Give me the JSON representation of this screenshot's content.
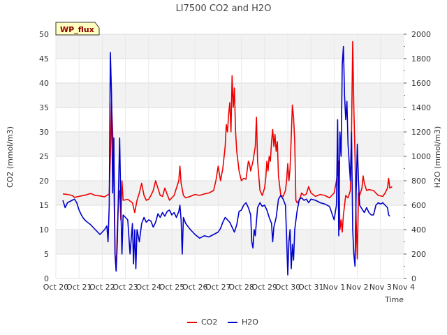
{
  "chart_data": {
    "type": "line",
    "title": "LI7500 CO2 and H2O",
    "xlabel": "Time",
    "ylabel_left": "CO2 (mmol/m3)",
    "ylabel_right": "H2O (mmol/m3)",
    "badge": "WP_flux",
    "x_ticks": [
      "Oct 20",
      "Oct 21",
      "Oct 22",
      "Oct 23",
      "Oct 24",
      "Oct 25",
      "Oct 26",
      "Oct 27",
      "Oct 28",
      "Oct 29",
      "Oct 30",
      "Oct 31",
      "Nov 1",
      "Nov 2",
      "Nov 3",
      "Nov 4"
    ],
    "xlim": [
      0,
      15
    ],
    "ylim_left": [
      0,
      50
    ],
    "ylim_right": [
      0,
      2000
    ],
    "yticks_left": [
      0,
      5,
      10,
      15,
      20,
      25,
      30,
      35,
      40,
      45,
      50
    ],
    "yticks_right": [
      0,
      200,
      400,
      600,
      800,
      1000,
      1200,
      1400,
      1600,
      1800,
      2000
    ],
    "grid": true,
    "legend_position": "bottom",
    "series": [
      {
        "name": "CO2",
        "color": "#ee0000",
        "axis": "left",
        "points": [
          [
            0.3,
            17.3
          ],
          [
            0.5,
            17.2
          ],
          [
            0.7,
            17.0
          ],
          [
            0.8,
            16.6
          ],
          [
            1.0,
            16.8
          ],
          [
            1.3,
            17.1
          ],
          [
            1.5,
            17.4
          ],
          [
            1.7,
            17.0
          ],
          [
            1.9,
            16.9
          ],
          [
            2.1,
            16.7
          ],
          [
            2.2,
            17.0
          ],
          [
            2.3,
            17.3
          ],
          [
            2.35,
            25.0
          ],
          [
            2.4,
            36.0
          ],
          [
            2.45,
            30.0
          ],
          [
            2.5,
            20.0
          ],
          [
            2.55,
            5.0
          ],
          [
            2.6,
            1.5
          ],
          [
            2.65,
            10.0
          ],
          [
            2.7,
            16.0
          ],
          [
            2.75,
            18.0
          ],
          [
            2.8,
            12.0
          ],
          [
            2.85,
            20.0
          ],
          [
            2.9,
            16.0
          ],
          [
            3.1,
            16.2
          ],
          [
            3.3,
            15.5
          ],
          [
            3.4,
            13.5
          ],
          [
            3.5,
            16.0
          ],
          [
            3.6,
            17.5
          ],
          [
            3.7,
            19.5
          ],
          [
            3.8,
            17.0
          ],
          [
            3.9,
            16.0
          ],
          [
            4.0,
            16.2
          ],
          [
            4.1,
            17.0
          ],
          [
            4.2,
            18.0
          ],
          [
            4.3,
            20.0
          ],
          [
            4.4,
            18.5
          ],
          [
            4.5,
            17.0
          ],
          [
            4.6,
            16.8
          ],
          [
            4.7,
            18.5
          ],
          [
            4.8,
            17.2
          ],
          [
            4.9,
            16.0
          ],
          [
            5.0,
            16.5
          ],
          [
            5.1,
            17.0
          ],
          [
            5.2,
            18.5
          ],
          [
            5.3,
            20.0
          ],
          [
            5.35,
            23.0
          ],
          [
            5.4,
            19.5
          ],
          [
            5.5,
            17.0
          ],
          [
            5.6,
            16.5
          ],
          [
            5.8,
            16.8
          ],
          [
            6.0,
            17.2
          ],
          [
            6.2,
            17.0
          ],
          [
            6.4,
            17.3
          ],
          [
            6.6,
            17.5
          ],
          [
            6.8,
            18.0
          ],
          [
            6.9,
            20.0
          ],
          [
            7.0,
            23.0
          ],
          [
            7.1,
            20.0
          ],
          [
            7.2,
            22.5
          ],
          [
            7.3,
            27.0
          ],
          [
            7.35,
            31.5
          ],
          [
            7.4,
            30.0
          ],
          [
            7.45,
            33.5
          ],
          [
            7.5,
            36.0
          ],
          [
            7.55,
            30.0
          ],
          [
            7.6,
            41.5
          ],
          [
            7.65,
            35.0
          ],
          [
            7.7,
            39.0
          ],
          [
            7.75,
            30.0
          ],
          [
            7.8,
            26.0
          ],
          [
            7.9,
            22.0
          ],
          [
            8.0,
            20.0
          ],
          [
            8.1,
            20.5
          ],
          [
            8.2,
            20.3
          ],
          [
            8.3,
            24.0
          ],
          [
            8.35,
            23.5
          ],
          [
            8.4,
            22.0
          ],
          [
            8.5,
            24.0
          ],
          [
            8.6,
            27.0
          ],
          [
            8.65,
            33.0
          ],
          [
            8.7,
            24.0
          ],
          [
            8.8,
            18.0
          ],
          [
            8.9,
            17.0
          ],
          [
            9.0,
            18.5
          ],
          [
            9.05,
            20.5
          ],
          [
            9.1,
            24.0
          ],
          [
            9.15,
            22.0
          ],
          [
            9.2,
            25.0
          ],
          [
            9.25,
            24.0
          ],
          [
            9.3,
            28.0
          ],
          [
            9.35,
            30.5
          ],
          [
            9.4,
            27.0
          ],
          [
            9.45,
            29.5
          ],
          [
            9.5,
            26.0
          ],
          [
            9.55,
            28.0
          ],
          [
            9.6,
            21.0
          ],
          [
            9.7,
            17.0
          ],
          [
            9.8,
            16.8
          ],
          [
            9.9,
            18.0
          ],
          [
            9.95,
            20.0
          ],
          [
            10.0,
            23.5
          ],
          [
            10.05,
            20.0
          ],
          [
            10.1,
            22.5
          ],
          [
            10.15,
            29.0
          ],
          [
            10.2,
            35.5
          ],
          [
            10.25,
            33.0
          ],
          [
            10.3,
            28.0
          ],
          [
            10.35,
            16.0
          ],
          [
            10.4,
            15.5
          ],
          [
            10.5,
            16.0
          ],
          [
            10.6,
            17.5
          ],
          [
            10.7,
            17.0
          ],
          [
            10.8,
            17.3
          ],
          [
            10.9,
            18.8
          ],
          [
            11.0,
            17.5
          ],
          [
            11.2,
            16.8
          ],
          [
            11.4,
            17.2
          ],
          [
            11.6,
            17.0
          ],
          [
            11.8,
            16.5
          ],
          [
            12.0,
            17.5
          ],
          [
            12.1,
            20.0
          ],
          [
            12.2,
            24.0
          ],
          [
            12.25,
            10.0
          ],
          [
            12.3,
            12.0
          ],
          [
            12.35,
            9.5
          ],
          [
            12.4,
            13.0
          ],
          [
            12.5,
            17.0
          ],
          [
            12.6,
            16.5
          ],
          [
            12.7,
            18.0
          ],
          [
            12.75,
            30.0
          ],
          [
            12.8,
            48.5
          ],
          [
            12.85,
            35.0
          ],
          [
            12.9,
            25.0
          ],
          [
            12.95,
            12.0
          ],
          [
            13.0,
            4.0
          ],
          [
            13.05,
            17.5
          ],
          [
            13.1,
            17.0
          ],
          [
            13.2,
            18.5
          ],
          [
            13.25,
            21.0
          ],
          [
            13.3,
            19.5
          ],
          [
            13.4,
            18.0
          ],
          [
            13.5,
            18.2
          ],
          [
            13.7,
            18.0
          ],
          [
            13.9,
            17.0
          ],
          [
            14.1,
            16.8
          ],
          [
            14.2,
            17.5
          ],
          [
            14.3,
            18.5
          ],
          [
            14.35,
            20.5
          ],
          [
            14.4,
            18.5
          ],
          [
            14.5,
            18.8
          ]
        ]
      },
      {
        "name": "H2O",
        "color": "#0000cc",
        "axis": "right",
        "points": [
          [
            0.3,
            640
          ],
          [
            0.4,
            580
          ],
          [
            0.5,
            620
          ],
          [
            0.7,
            640
          ],
          [
            0.8,
            650
          ],
          [
            0.9,
            620
          ],
          [
            1.0,
            560
          ],
          [
            1.1,
            520
          ],
          [
            1.2,
            490
          ],
          [
            1.3,
            470
          ],
          [
            1.5,
            440
          ],
          [
            1.7,
            400
          ],
          [
            1.9,
            360
          ],
          [
            2.1,
            400
          ],
          [
            2.2,
            430
          ],
          [
            2.25,
            300
          ],
          [
            2.3,
            600
          ],
          [
            2.35,
            1850
          ],
          [
            2.4,
            1500
          ],
          [
            2.45,
            700
          ],
          [
            2.5,
            1150
          ],
          [
            2.55,
            200
          ],
          [
            2.6,
            60
          ],
          [
            2.65,
            300
          ],
          [
            2.7,
            700
          ],
          [
            2.75,
            1150
          ],
          [
            2.8,
            600
          ],
          [
            2.85,
            200
          ],
          [
            2.9,
            520
          ],
          [
            3.0,
            500
          ],
          [
            3.1,
            480
          ],
          [
            3.2,
            200
          ],
          [
            3.3,
            450
          ],
          [
            3.35,
            120
          ],
          [
            3.4,
            400
          ],
          [
            3.45,
            80
          ],
          [
            3.5,
            400
          ],
          [
            3.6,
            300
          ],
          [
            3.7,
            450
          ],
          [
            3.8,
            500
          ],
          [
            3.9,
            460
          ],
          [
            4.0,
            480
          ],
          [
            4.1,
            470
          ],
          [
            4.2,
            420
          ],
          [
            4.3,
            460
          ],
          [
            4.4,
            530
          ],
          [
            4.5,
            500
          ],
          [
            4.6,
            540
          ],
          [
            4.7,
            510
          ],
          [
            4.8,
            550
          ],
          [
            4.9,
            560
          ],
          [
            5.0,
            520
          ],
          [
            5.1,
            540
          ],
          [
            5.2,
            500
          ],
          [
            5.3,
            550
          ],
          [
            5.35,
            600
          ],
          [
            5.4,
            480
          ],
          [
            5.45,
            200
          ],
          [
            5.5,
            500
          ],
          [
            5.6,
            450
          ],
          [
            5.8,
            400
          ],
          [
            6.0,
            360
          ],
          [
            6.2,
            330
          ],
          [
            6.4,
            350
          ],
          [
            6.6,
            340
          ],
          [
            6.8,
            360
          ],
          [
            7.0,
            380
          ],
          [
            7.1,
            410
          ],
          [
            7.2,
            460
          ],
          [
            7.3,
            500
          ],
          [
            7.4,
            480
          ],
          [
            7.5,
            460
          ],
          [
            7.6,
            420
          ],
          [
            7.7,
            380
          ],
          [
            7.8,
            440
          ],
          [
            7.9,
            550
          ],
          [
            8.0,
            560
          ],
          [
            8.1,
            600
          ],
          [
            8.2,
            620
          ],
          [
            8.3,
            580
          ],
          [
            8.4,
            520
          ],
          [
            8.45,
            300
          ],
          [
            8.5,
            250
          ],
          [
            8.55,
            400
          ],
          [
            8.6,
            350
          ],
          [
            8.7,
            580
          ],
          [
            8.8,
            620
          ],
          [
            8.9,
            590
          ],
          [
            9.0,
            600
          ],
          [
            9.1,
            560
          ],
          [
            9.2,
            500
          ],
          [
            9.3,
            450
          ],
          [
            9.35,
            300
          ],
          [
            9.4,
            420
          ],
          [
            9.5,
            500
          ],
          [
            9.6,
            650
          ],
          [
            9.7,
            680
          ],
          [
            9.8,
            650
          ],
          [
            9.9,
            600
          ],
          [
            9.95,
            350
          ],
          [
            10.0,
            30
          ],
          [
            10.05,
            300
          ],
          [
            10.1,
            400
          ],
          [
            10.15,
            80
          ],
          [
            10.2,
            280
          ],
          [
            10.25,
            150
          ],
          [
            10.3,
            400
          ],
          [
            10.4,
            550
          ],
          [
            10.5,
            650
          ],
          [
            10.6,
            660
          ],
          [
            10.7,
            640
          ],
          [
            10.8,
            650
          ],
          [
            10.9,
            620
          ],
          [
            11.0,
            650
          ],
          [
            11.2,
            640
          ],
          [
            11.4,
            620
          ],
          [
            11.6,
            610
          ],
          [
            11.8,
            590
          ],
          [
            12.0,
            480
          ],
          [
            12.1,
            600
          ],
          [
            12.15,
            1300
          ],
          [
            12.2,
            350
          ],
          [
            12.25,
            1200
          ],
          [
            12.3,
            1000
          ],
          [
            12.35,
            1750
          ],
          [
            12.4,
            1900
          ],
          [
            12.45,
            1500
          ],
          [
            12.5,
            1300
          ],
          [
            12.55,
            1450
          ],
          [
            12.6,
            1100
          ],
          [
            12.7,
            800
          ],
          [
            12.75,
            1200
          ],
          [
            12.8,
            400
          ],
          [
            12.85,
            200
          ],
          [
            12.9,
            100
          ],
          [
            12.95,
            700
          ],
          [
            13.0,
            1100
          ],
          [
            13.05,
            800
          ],
          [
            13.1,
            600
          ],
          [
            13.2,
            570
          ],
          [
            13.3,
            540
          ],
          [
            13.4,
            580
          ],
          [
            13.5,
            540
          ],
          [
            13.6,
            520
          ],
          [
            13.7,
            520
          ],
          [
            13.8,
            600
          ],
          [
            13.9,
            620
          ],
          [
            14.0,
            610
          ],
          [
            14.1,
            620
          ],
          [
            14.2,
            600
          ],
          [
            14.3,
            580
          ],
          [
            14.35,
            520
          ],
          [
            14.4,
            510
          ]
        ]
      }
    ]
  }
}
